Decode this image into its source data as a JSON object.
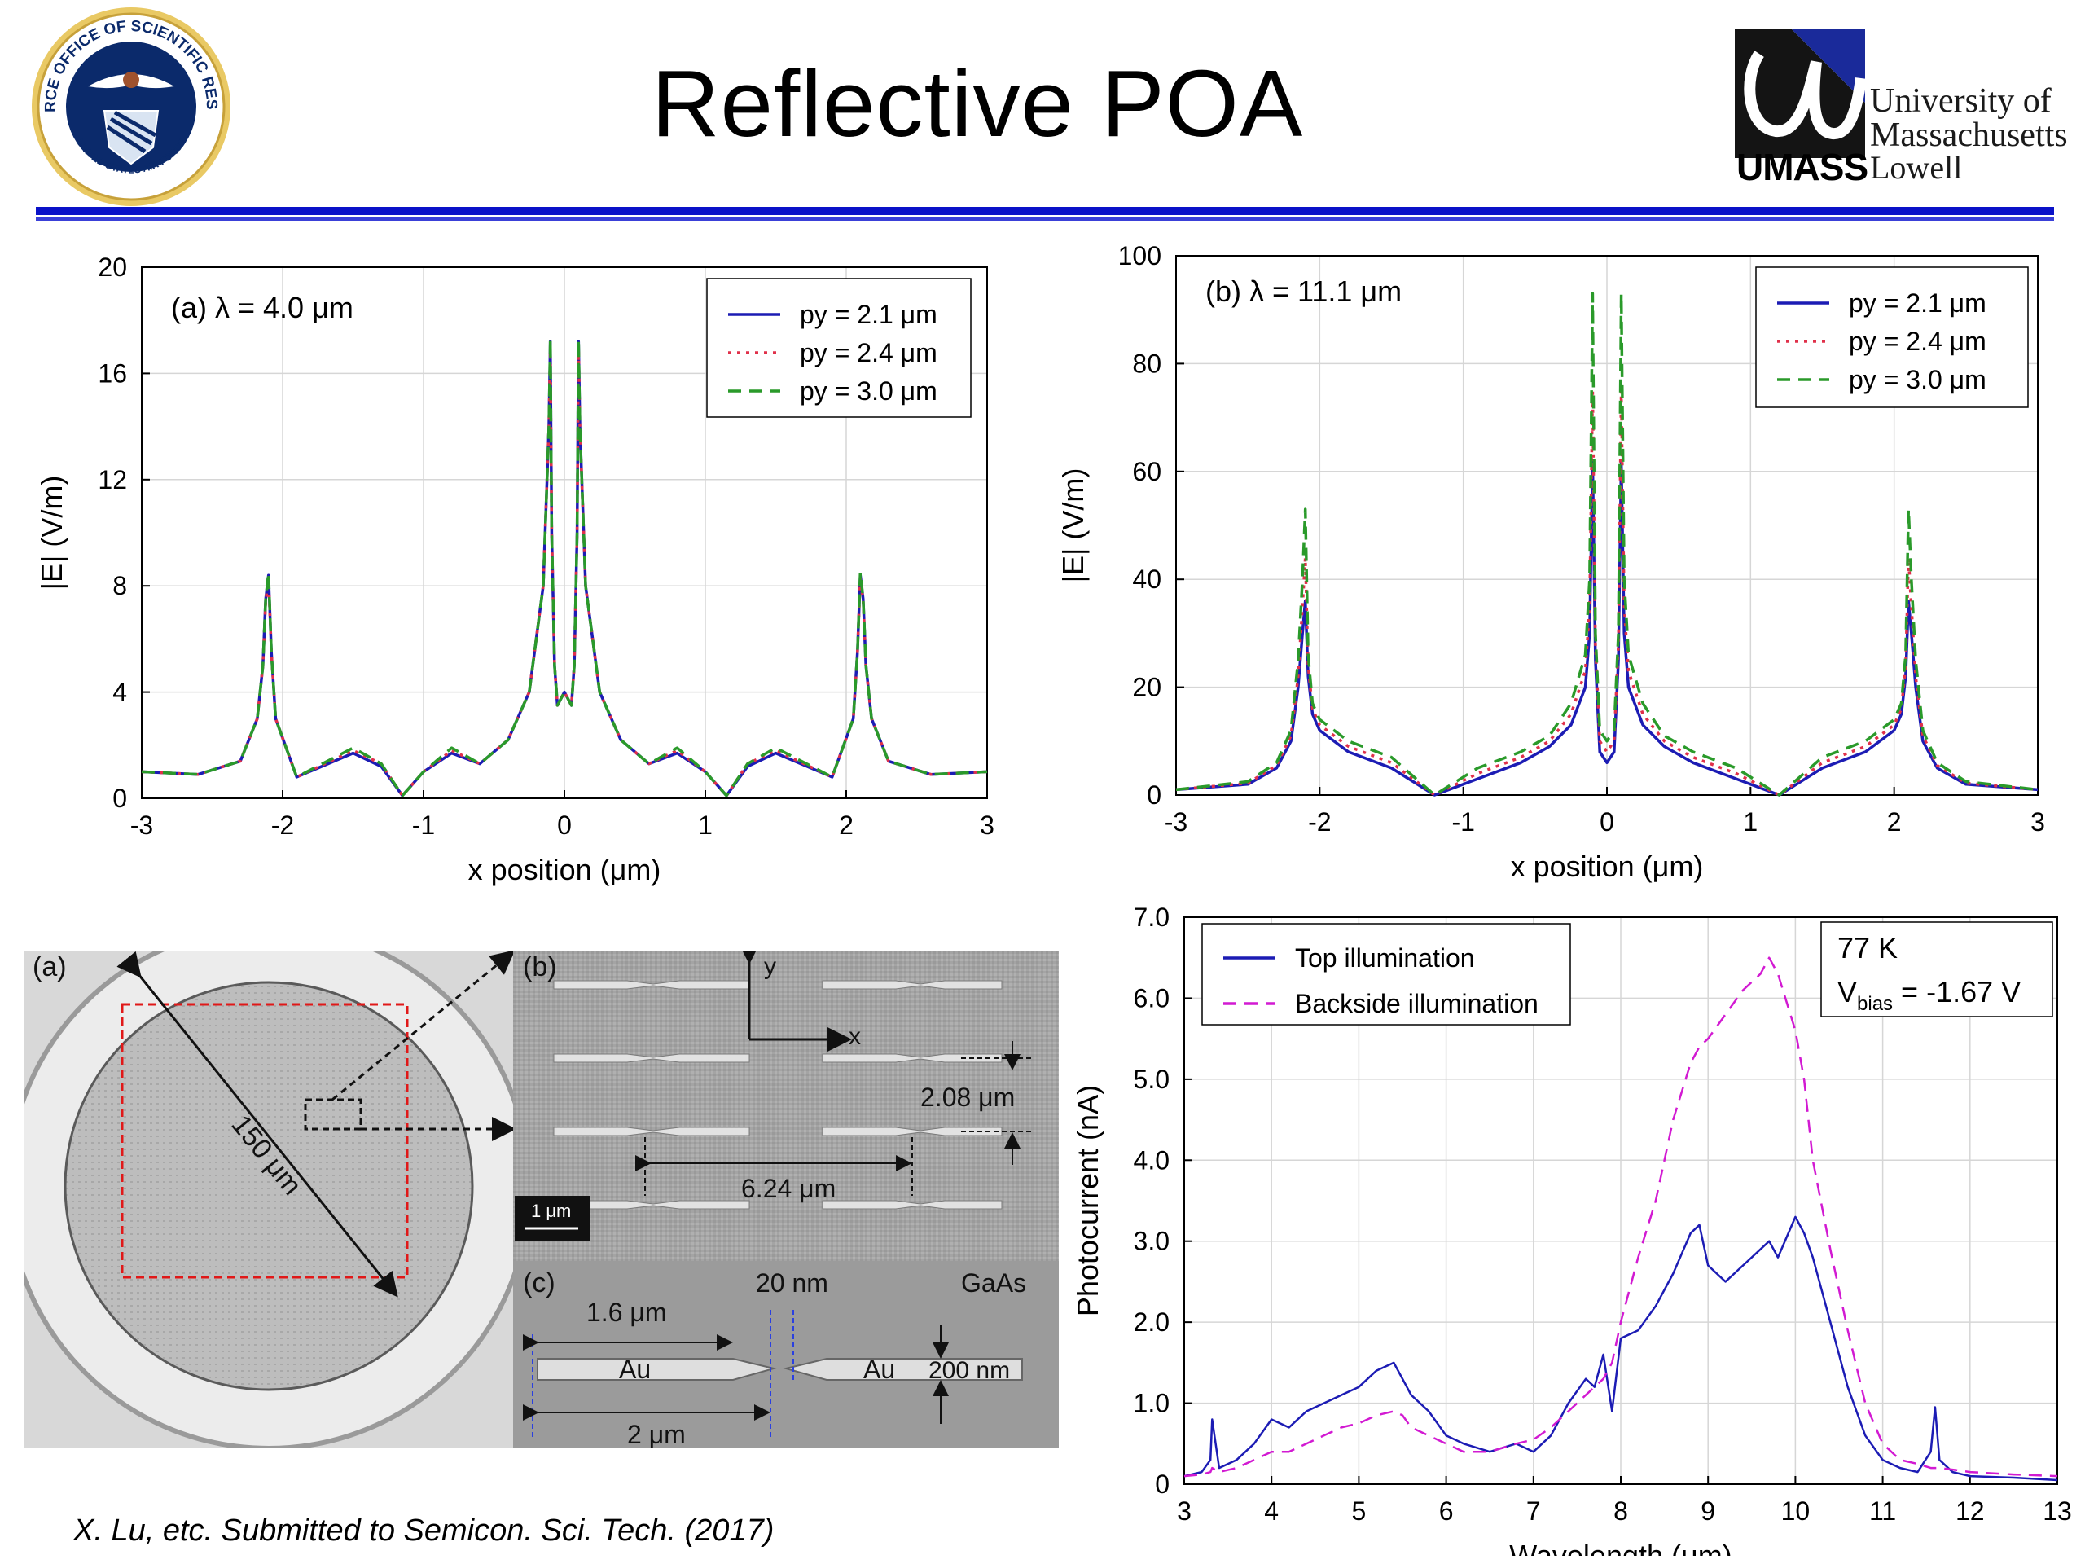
{
  "slide": {
    "title": "Reflective POA",
    "university": {
      "line1": "University of",
      "line2": "Massachusetts",
      "umass": "UMASS",
      "lowell": "Lowell"
    },
    "logo_left": {
      "icon": "air-force-seal-icon",
      "top_text": "AIR FORCE OFFICE OF SCIENTIFIC RESEARCH",
      "bottom_text": "UNITED STATES AIR FORCE"
    },
    "citation": "X. Lu, etc. Submitted to Semicon. Sci. Tech. (2017)",
    "accent_color": "#0a12c8"
  },
  "sem": {
    "label_a": "(a)",
    "label_b": "(b)",
    "label_c": "(c)",
    "diameter": "150 μm",
    "axis_y": "y",
    "axis_x": "x",
    "pitch_y": "2.08 μm",
    "pitch_x": "6.24 μm",
    "scale_bar": "1 μm",
    "gap": "20 nm",
    "material": "GaAs",
    "arm_length": "1.6 μm",
    "metal_left": "Au",
    "metal_right": "Au",
    "thickness": "200 nm",
    "total_length": "2 μm"
  },
  "chart_data": [
    {
      "type": "line",
      "annotation": "(a) λ = 4.0 μm",
      "xlabel": "x position (μm)",
      "ylabel": "|E| (V/m)",
      "xlim": [
        -3,
        3
      ],
      "ylim": [
        0,
        20
      ],
      "xticks": [
        -3,
        -2,
        -1,
        0,
        1,
        2,
        3
      ],
      "yticks": [
        0,
        4,
        8,
        12,
        16,
        20
      ],
      "grid": true,
      "legend": "top-right",
      "x": [
        -3,
        -2.6,
        -2.3,
        -2.18,
        -2.14,
        -2.12,
        -2.1,
        -2.08,
        -2.05,
        -1.9,
        -1.5,
        -1.3,
        -1.15,
        -1.0,
        -0.8,
        -0.6,
        -0.4,
        -0.25,
        -0.15,
        -0.11,
        -0.1,
        -0.09,
        -0.07,
        -0.05,
        0,
        0.05,
        0.07,
        0.09,
        0.1,
        0.11,
        0.15,
        0.25,
        0.4,
        0.6,
        0.8,
        1.0,
        1.15,
        1.3,
        1.5,
        1.9,
        2.05,
        2.08,
        2.1,
        2.12,
        2.14,
        2.18,
        2.3,
        2.6,
        3
      ],
      "series": [
        {
          "name": "py = 2.1 μm",
          "color": "#1c1cb4",
          "style": "solid",
          "values": [
            1.0,
            0.9,
            1.4,
            3.0,
            5.0,
            7.5,
            8.4,
            5.5,
            3.0,
            0.8,
            1.7,
            1.2,
            0.1,
            1.0,
            1.7,
            1.3,
            2.2,
            4.0,
            8.0,
            14.0,
            17.2,
            10.0,
            5.0,
            3.5,
            4.0,
            3.5,
            5.0,
            10.0,
            17.2,
            14.0,
            8.0,
            4.0,
            2.2,
            1.3,
            1.7,
            1.0,
            0.1,
            1.2,
            1.7,
            0.8,
            3.0,
            5.5,
            8.4,
            7.5,
            5.0,
            3.0,
            1.4,
            0.9,
            1.0
          ]
        },
        {
          "name": "py = 2.4 μm",
          "color": "#e0304a",
          "style": "dotted",
          "values": [
            1.0,
            0.9,
            1.4,
            3.0,
            5.0,
            7.4,
            8.3,
            5.5,
            3.0,
            0.8,
            1.8,
            1.3,
            0.1,
            1.0,
            1.8,
            1.3,
            2.2,
            4.0,
            8.0,
            14.0,
            17.0,
            10.0,
            5.0,
            3.5,
            4.0,
            3.5,
            5.0,
            10.0,
            17.0,
            14.0,
            8.0,
            4.0,
            2.2,
            1.3,
            1.8,
            1.0,
            0.1,
            1.3,
            1.8,
            0.8,
            3.0,
            5.5,
            8.3,
            7.4,
            5.0,
            3.0,
            1.4,
            0.9,
            1.0
          ]
        },
        {
          "name": "py = 3.0 μm",
          "color": "#2a9a2a",
          "style": "dashed",
          "values": [
            1.0,
            0.9,
            1.4,
            3.0,
            5.0,
            7.5,
            8.5,
            5.5,
            3.0,
            0.8,
            1.9,
            1.3,
            0.1,
            1.0,
            1.9,
            1.3,
            2.2,
            4.0,
            8.0,
            14.0,
            17.3,
            10.0,
            5.0,
            3.5,
            4.0,
            3.5,
            5.0,
            10.0,
            17.3,
            14.0,
            8.0,
            4.0,
            2.2,
            1.3,
            1.9,
            1.0,
            0.1,
            1.3,
            1.9,
            0.8,
            3.0,
            5.5,
            8.5,
            7.5,
            5.0,
            3.0,
            1.4,
            0.9,
            1.0
          ]
        }
      ]
    },
    {
      "type": "line",
      "annotation": "(b) λ = 11.1 μm",
      "xlabel": "x position (μm)",
      "ylabel": "|E| (V/m)",
      "xlim": [
        -3,
        3
      ],
      "ylim": [
        0,
        100
      ],
      "xticks": [
        -3,
        -2,
        -1,
        0,
        1,
        2,
        3
      ],
      "yticks": [
        0,
        20,
        40,
        60,
        80,
        100
      ],
      "grid": true,
      "legend": "top-right",
      "x": [
        -3,
        -2.5,
        -2.3,
        -2.2,
        -2.15,
        -2.12,
        -2.1,
        -2.08,
        -2.05,
        -2.0,
        -1.8,
        -1.5,
        -1.2,
        -0.9,
        -0.6,
        -0.4,
        -0.25,
        -0.15,
        -0.12,
        -0.1,
        -0.08,
        -0.05,
        0,
        0.05,
        0.08,
        0.1,
        0.12,
        0.15,
        0.25,
        0.4,
        0.6,
        0.9,
        1.2,
        1.5,
        1.8,
        2.0,
        2.05,
        2.08,
        2.1,
        2.12,
        2.15,
        2.2,
        2.3,
        2.5,
        3
      ],
      "series": [
        {
          "name": "py = 2.1 μm",
          "color": "#1c1cb4",
          "style": "solid",
          "values": [
            1.0,
            2.0,
            5.0,
            10.0,
            20.0,
            30.0,
            36.0,
            22.0,
            15.0,
            12.0,
            8.0,
            5.0,
            0.0,
            3.0,
            6.0,
            9.0,
            13.0,
            20.0,
            30.0,
            62.0,
            25.0,
            8.0,
            6.0,
            8.0,
            25.0,
            62.0,
            30.0,
            20.0,
            13.0,
            9.0,
            6.0,
            3.0,
            0.0,
            5.0,
            8.0,
            12.0,
            15.0,
            22.0,
            36.0,
            30.0,
            20.0,
            10.0,
            5.0,
            2.0,
            1.0
          ]
        },
        {
          "name": "py = 2.4 μm",
          "color": "#e0304a",
          "style": "dotted",
          "values": [
            1.0,
            2.2,
            5.5,
            11.0,
            22.0,
            35.0,
            44.0,
            24.0,
            16.0,
            13.0,
            9.0,
            6.0,
            0.0,
            4.0,
            7.0,
            10.0,
            15.0,
            23.0,
            35.0,
            75.0,
            28.0,
            10.0,
            8.0,
            10.0,
            28.0,
            75.0,
            35.0,
            23.0,
            15.0,
            10.0,
            7.0,
            4.0,
            0.0,
            6.0,
            9.0,
            13.0,
            16.0,
            24.0,
            44.0,
            35.0,
            22.0,
            11.0,
            5.5,
            2.2,
            1.0
          ]
        },
        {
          "name": "py = 3.0 μm",
          "color": "#2a9a2a",
          "style": "dashed",
          "values": [
            1.0,
            2.5,
            6.0,
            12.0,
            25.0,
            40.0,
            53.0,
            26.0,
            17.0,
            14.0,
            10.0,
            7.0,
            0.0,
            5.0,
            8.0,
            11.0,
            17.0,
            26.0,
            40.0,
            93.0,
            30.0,
            12.0,
            10.0,
            12.0,
            30.0,
            93.0,
            40.0,
            26.0,
            17.0,
            11.0,
            8.0,
            5.0,
            0.0,
            7.0,
            10.0,
            14.0,
            17.0,
            26.0,
            53.0,
            40.0,
            25.0,
            12.0,
            6.0,
            2.5,
            1.0
          ]
        }
      ]
    },
    {
      "type": "line",
      "xlabel": "Wavelength (μm)",
      "ylabel": "Photocurrent (nA)",
      "xlim": [
        3,
        13
      ],
      "ylim": [
        0,
        7
      ],
      "xticks": [
        3,
        4,
        5,
        6,
        7,
        8,
        9,
        10,
        11,
        12,
        13
      ],
      "yticks": [
        "0",
        "1.0",
        "2.0",
        "3.0",
        "4.0",
        "5.0",
        "6.0",
        "7.0"
      ],
      "grid": true,
      "legend": "top-left",
      "condition_temp": "77 K",
      "condition_bias_prefix": "V",
      "condition_bias_sub": "bias",
      "condition_bias_suffix": " = -1.67 V",
      "x": [
        3.0,
        3.2,
        3.3,
        3.32,
        3.4,
        3.6,
        3.8,
        4.0,
        4.2,
        4.4,
        4.6,
        4.8,
        5.0,
        5.2,
        5.4,
        5.5,
        5.6,
        5.8,
        6.0,
        6.2,
        6.5,
        6.8,
        7.0,
        7.2,
        7.4,
        7.6,
        7.7,
        7.8,
        7.9,
        8.0,
        8.2,
        8.4,
        8.6,
        8.8,
        8.9,
        9.0,
        9.2,
        9.4,
        9.6,
        9.7,
        9.8,
        10.0,
        10.1,
        10.2,
        10.4,
        10.6,
        10.8,
        11.0,
        11.2,
        11.4,
        11.55,
        11.6,
        11.65,
        11.8,
        12.0,
        12.5,
        13.0
      ],
      "series": [
        {
          "name": "Top illumination",
          "color": "#1c1cb4",
          "style": "solid",
          "values": [
            0.1,
            0.15,
            0.3,
            0.8,
            0.2,
            0.3,
            0.5,
            0.8,
            0.7,
            0.9,
            1.0,
            1.1,
            1.2,
            1.4,
            1.5,
            1.3,
            1.1,
            0.9,
            0.6,
            0.5,
            0.4,
            0.5,
            0.4,
            0.6,
            1.0,
            1.3,
            1.2,
            1.6,
            0.9,
            1.8,
            1.9,
            2.2,
            2.6,
            3.1,
            3.2,
            2.7,
            2.5,
            2.7,
            2.9,
            3.0,
            2.8,
            3.3,
            3.1,
            2.8,
            2.0,
            1.2,
            0.6,
            0.3,
            0.2,
            0.15,
            0.4,
            0.95,
            0.3,
            0.15,
            0.1,
            0.08,
            0.05
          ]
        },
        {
          "name": "Backside illumination",
          "color": "#d21ad2",
          "style": "dashed",
          "values": [
            0.1,
            0.12,
            0.15,
            0.2,
            0.15,
            0.2,
            0.3,
            0.4,
            0.4,
            0.5,
            0.6,
            0.7,
            0.75,
            0.85,
            0.9,
            0.85,
            0.7,
            0.6,
            0.5,
            0.4,
            0.4,
            0.5,
            0.55,
            0.7,
            0.9,
            1.1,
            1.2,
            1.3,
            1.5,
            2.0,
            2.8,
            3.5,
            4.5,
            5.2,
            5.4,
            5.5,
            5.8,
            6.1,
            6.3,
            6.5,
            6.3,
            5.6,
            5.0,
            4.0,
            2.9,
            1.9,
            1.0,
            0.5,
            0.3,
            0.25,
            0.2,
            0.2,
            0.2,
            0.18,
            0.15,
            0.12,
            0.1
          ]
        }
      ]
    }
  ]
}
